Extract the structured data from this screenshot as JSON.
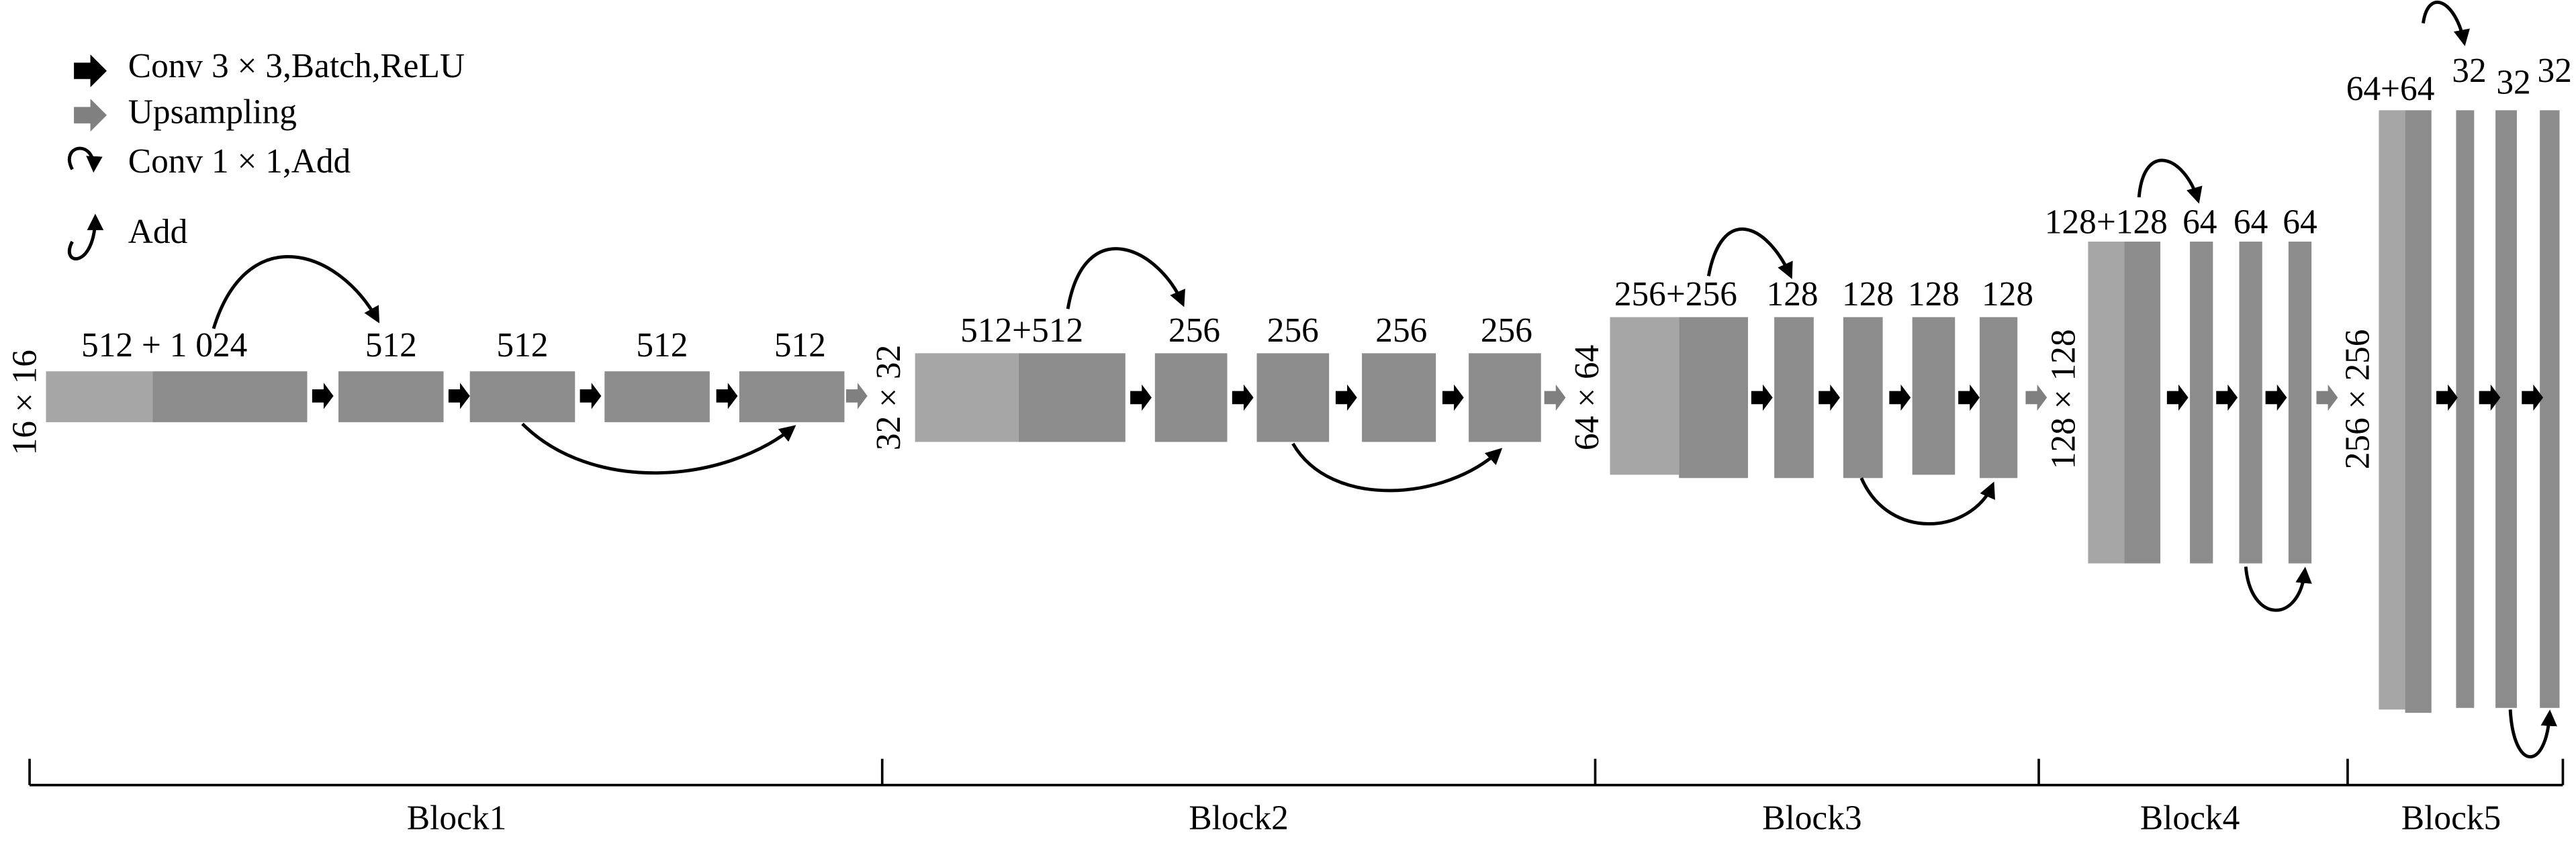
{
  "legend": [
    "Conv 3 × 3,Batch,ReLU",
    "Upsampling",
    "Conv 1 × 1,Add",
    "Add"
  ],
  "blocks": [
    {
      "name": "Block1",
      "size": "16 × 16",
      "channels": [
        "512 + 1 024",
        "512",
        "512",
        "512",
        "512"
      ]
    },
    {
      "name": "Block2",
      "size": "32 × 32",
      "channels": [
        "512+512",
        "256",
        "256",
        "256",
        "256"
      ]
    },
    {
      "name": "Block3",
      "size": "64 × 64",
      "channels": [
        "256+256",
        "128",
        "128",
        "128",
        "128"
      ]
    },
    {
      "name": "Block4",
      "size": "128 × 128",
      "channels": [
        "128+128",
        "64",
        "64",
        "64"
      ]
    },
    {
      "name": "Block5",
      "size": "256 × 256",
      "channels": [
        "64+64",
        "32",
        "32",
        "32"
      ]
    }
  ]
}
